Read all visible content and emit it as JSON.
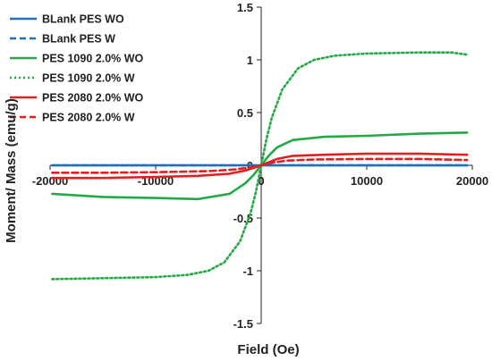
{
  "chart_data": {
    "type": "line",
    "title": "",
    "xlabel": "Field (Oe)",
    "ylabel": "Moment/ Mass (emu/g)",
    "xlim": [
      -20000,
      20000
    ],
    "ylim": [
      -1.5,
      1.5
    ],
    "x_ticks": [
      "-20000",
      "-10000",
      "0",
      "10000",
      "20000"
    ],
    "y_ticks": [
      "1.5",
      "1",
      "0.5",
      "0",
      "-0.5",
      "-1",
      "-1.5"
    ],
    "grid": false,
    "legend_position": "top-left",
    "series": [
      {
        "name": "BLank PES WO",
        "color": "#1f6fbf",
        "dash": "solid",
        "points": [
          [
            -19800,
            0.0
          ],
          [
            0,
            0.0
          ],
          [
            19500,
            0.0
          ]
        ]
      },
      {
        "name": "BLank PES W",
        "color": "#1f6fbf",
        "dash": "dashed",
        "points": [
          [
            -19800,
            0.0
          ],
          [
            0,
            0.0
          ],
          [
            19500,
            0.0
          ]
        ]
      },
      {
        "name": "PES 1090 2.0% WO",
        "color": "#22aa44",
        "dash": "solid",
        "points": [
          [
            -19800,
            -0.27
          ],
          [
            -15000,
            -0.3
          ],
          [
            -10000,
            -0.31
          ],
          [
            -6000,
            -0.32
          ],
          [
            -3000,
            -0.27
          ],
          [
            -1500,
            -0.17
          ],
          [
            -700,
            -0.09
          ],
          [
            0,
            0.0
          ],
          [
            700,
            0.09
          ],
          [
            1500,
            0.17
          ],
          [
            3000,
            0.24
          ],
          [
            6000,
            0.27
          ],
          [
            10000,
            0.28
          ],
          [
            15000,
            0.3
          ],
          [
            19500,
            0.31
          ]
        ]
      },
      {
        "name": "PES 1090 2.0% W",
        "color": "#22aa44",
        "dash": "dotted",
        "points": [
          [
            -19800,
            -1.08
          ],
          [
            -15000,
            -1.07
          ],
          [
            -10000,
            -1.06
          ],
          [
            -7000,
            -1.04
          ],
          [
            -5000,
            -1.0
          ],
          [
            -3500,
            -0.92
          ],
          [
            -2000,
            -0.72
          ],
          [
            -1000,
            -0.45
          ],
          [
            -500,
            -0.25
          ],
          [
            0,
            0.0
          ],
          [
            500,
            0.25
          ],
          [
            1000,
            0.45
          ],
          [
            2000,
            0.72
          ],
          [
            3500,
            0.92
          ],
          [
            5000,
            1.0
          ],
          [
            7000,
            1.04
          ],
          [
            10000,
            1.06
          ],
          [
            15000,
            1.07
          ],
          [
            18000,
            1.07
          ],
          [
            19500,
            1.05
          ]
        ]
      },
      {
        "name": "PES 2080 2.0% WO",
        "color": "#e02020",
        "dash": "solid",
        "points": [
          [
            -19800,
            -0.12
          ],
          [
            -15000,
            -0.12
          ],
          [
            -10000,
            -0.11
          ],
          [
            -6000,
            -0.1
          ],
          [
            -3000,
            -0.08
          ],
          [
            -1500,
            -0.05
          ],
          [
            0,
            0.0
          ],
          [
            1500,
            0.06
          ],
          [
            3000,
            0.09
          ],
          [
            6000,
            0.1
          ],
          [
            10000,
            0.11
          ],
          [
            15000,
            0.11
          ],
          [
            19500,
            0.1
          ]
        ]
      },
      {
        "name": "PES 2080 2.0% W",
        "color": "#e02020",
        "dash": "dashed",
        "points": [
          [
            -19800,
            -0.07
          ],
          [
            -15000,
            -0.07
          ],
          [
            -10000,
            -0.065
          ],
          [
            -5000,
            -0.055
          ],
          [
            -2500,
            -0.04
          ],
          [
            -1000,
            -0.02
          ],
          [
            0,
            0.0
          ],
          [
            1000,
            0.025
          ],
          [
            2500,
            0.045
          ],
          [
            5000,
            0.055
          ],
          [
            10000,
            0.06
          ],
          [
            15000,
            0.06
          ],
          [
            19500,
            0.05
          ]
        ]
      }
    ]
  }
}
